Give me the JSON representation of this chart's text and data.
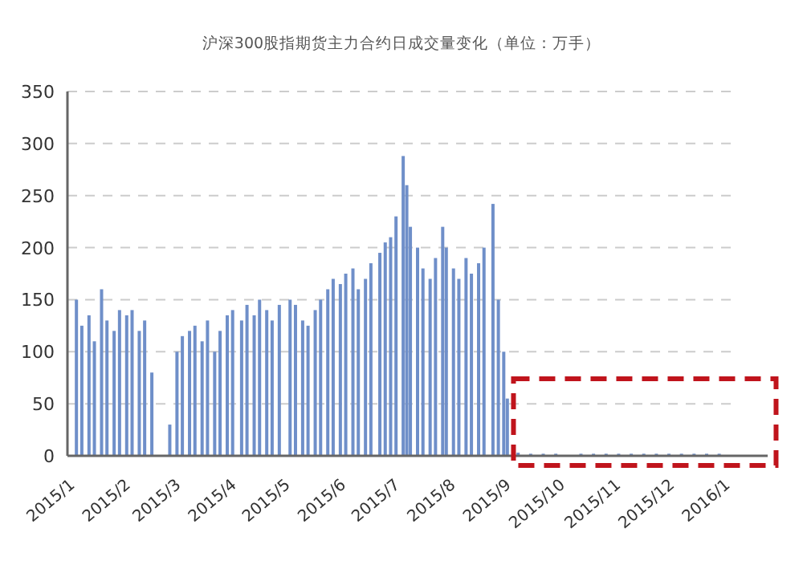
{
  "chart_data": {
    "type": "bar",
    "title": "沪深300股指期货主力合约日成交量变化（单位：万手）",
    "x": [
      "2015-01-05",
      "2015-01-08",
      "2015-01-12",
      "2015-01-15",
      "2015-01-19",
      "2015-01-22",
      "2015-01-26",
      "2015-01-29",
      "2015-02-02",
      "2015-02-05",
      "2015-02-09",
      "2015-02-12",
      "2015-02-16",
      "2015-02-26",
      "2015-03-02",
      "2015-03-05",
      "2015-03-09",
      "2015-03-12",
      "2015-03-16",
      "2015-03-19",
      "2015-03-23",
      "2015-03-26",
      "2015-03-30",
      "2015-04-02",
      "2015-04-07",
      "2015-04-10",
      "2015-04-14",
      "2015-04-17",
      "2015-04-21",
      "2015-04-24",
      "2015-04-28",
      "2015-05-04",
      "2015-05-07",
      "2015-05-11",
      "2015-05-14",
      "2015-05-18",
      "2015-05-21",
      "2015-05-25",
      "2015-05-28",
      "2015-06-01",
      "2015-06-04",
      "2015-06-08",
      "2015-06-11",
      "2015-06-15",
      "2015-06-18",
      "2015-06-23",
      "2015-06-26",
      "2015-06-29",
      "2015-07-02",
      "2015-07-06",
      "2015-07-08",
      "2015-07-10",
      "2015-07-14",
      "2015-07-17",
      "2015-07-21",
      "2015-07-24",
      "2015-07-28",
      "2015-07-30",
      "2015-08-03",
      "2015-08-06",
      "2015-08-10",
      "2015-08-13",
      "2015-08-17",
      "2015-08-20",
      "2015-08-25",
      "2015-08-28",
      "2015-08-31",
      "2015-09-02",
      "2015-09-08",
      "2015-09-15",
      "2015-09-22",
      "2015-09-29",
      "2015-10-13",
      "2015-10-20",
      "2015-10-27",
      "2015-11-03",
      "2015-11-10",
      "2015-11-17",
      "2015-11-24",
      "2015-12-01",
      "2015-12-08",
      "2015-12-15",
      "2015-12-22",
      "2015-12-29"
    ],
    "values": [
      150,
      125,
      135,
      110,
      160,
      130,
      120,
      140,
      135,
      140,
      120,
      130,
      80,
      30,
      100,
      115,
      120,
      125,
      110,
      130,
      100,
      120,
      135,
      140,
      130,
      145,
      135,
      150,
      140,
      130,
      145,
      150,
      145,
      130,
      125,
      140,
      150,
      160,
      170,
      165,
      175,
      180,
      160,
      170,
      185,
      195,
      205,
      210,
      230,
      288,
      260,
      220,
      200,
      180,
      170,
      190,
      220,
      200,
      180,
      170,
      190,
      175,
      185,
      200,
      242,
      150,
      100,
      55,
      3,
      2,
      2,
      2,
      2,
      2,
      2,
      2,
      2,
      2,
      2,
      2,
      2,
      2,
      2,
      2
    ],
    "color": "#6f8fc9",
    "xlim": [
      "2014-12-31",
      "2016-01-25"
    ],
    "xticks": [
      {
        "value": "2015-01-01",
        "label": "2015/1"
      },
      {
        "value": "2015-02-01",
        "label": "2015/2"
      },
      {
        "value": "2015-03-01",
        "label": "2015/3"
      },
      {
        "value": "2015-04-01",
        "label": "2015/4"
      },
      {
        "value": "2015-05-01",
        "label": "2015/5"
      },
      {
        "value": "2015-06-01",
        "label": "2015/6"
      },
      {
        "value": "2015-07-01",
        "label": "2015/7"
      },
      {
        "value": "2015-08-01",
        "label": "2015/8"
      },
      {
        "value": "2015-09-01",
        "label": "2015/9"
      },
      {
        "value": "2015-10-01",
        "label": "2015/10"
      },
      {
        "value": "2015-11-01",
        "label": "2015/11"
      },
      {
        "value": "2015-12-01",
        "label": "2015/12"
      },
      {
        "value": "2016-01-01",
        "label": "2016/1"
      }
    ],
    "ylim": [
      0,
      350
    ],
    "yticks": [
      0,
      50,
      100,
      150,
      200,
      250,
      300,
      350
    ],
    "grid": "y"
  }
}
